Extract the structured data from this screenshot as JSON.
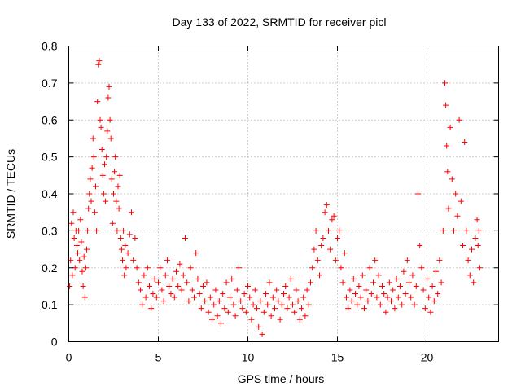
{
  "chart_data": {
    "type": "scatter",
    "title": "Day 133 of 2022, SRMTID for receiver picl",
    "xlabel": "GPS time / hours",
    "ylabel": "SRMTID / TECUs",
    "xlim": [
      0,
      24
    ],
    "ylim": [
      0,
      0.8
    ],
    "xticks": [
      0,
      5,
      10,
      15,
      20
    ],
    "xtick_labels": [
      "0",
      "5",
      "10",
      "15",
      "20"
    ],
    "yticks": [
      0,
      0.1,
      0.2,
      0.3,
      0.4,
      0.5,
      0.6,
      0.7,
      0.8
    ],
    "ytick_labels": [
      "0",
      "0.1",
      "0.2",
      "0.3",
      "0.4",
      "0.5",
      "0.6",
      "0.7",
      "0.8"
    ],
    "grid": true,
    "marker": "plus",
    "color": "#ff0000",
    "series": [
      {
        "name": "SRMTID",
        "points": [
          [
            0.05,
            0.15
          ],
          [
            0.1,
            0.22
          ],
          [
            0.15,
            0.32
          ],
          [
            0.2,
            0.18
          ],
          [
            0.25,
            0.35
          ],
          [
            0.3,
            0.28
          ],
          [
            0.35,
            0.2
          ],
          [
            0.4,
            0.3
          ],
          [
            0.45,
            0.26
          ],
          [
            0.5,
            0.24
          ],
          [
            0.55,
            0.3
          ],
          [
            0.6,
            0.22
          ],
          [
            0.65,
            0.33
          ],
          [
            0.7,
            0.27
          ],
          [
            0.75,
            0.19
          ],
          [
            0.8,
            0.15
          ],
          [
            0.85,
            0.23
          ],
          [
            0.9,
            0.12
          ],
          [
            0.95,
            0.2
          ],
          [
            1.0,
            0.25
          ],
          [
            1.05,
            0.3
          ],
          [
            1.1,
            0.36
          ],
          [
            1.15,
            0.4
          ],
          [
            1.2,
            0.44
          ],
          [
            1.25,
            0.38
          ],
          [
            1.3,
            0.47
          ],
          [
            1.35,
            0.55
          ],
          [
            1.4,
            0.5
          ],
          [
            1.45,
            0.35
          ],
          [
            1.5,
            0.42
          ],
          [
            1.55,
            0.3
          ],
          [
            1.6,
            0.65
          ],
          [
            1.65,
            0.75
          ],
          [
            1.7,
            0.76
          ],
          [
            1.75,
            0.6
          ],
          [
            1.8,
            0.58
          ],
          [
            1.85,
            0.52
          ],
          [
            1.9,
            0.45
          ],
          [
            1.95,
            0.4
          ],
          [
            2.0,
            0.48
          ],
          [
            2.05,
            0.38
          ],
          [
            2.1,
            0.5
          ],
          [
            2.15,
            0.57
          ],
          [
            2.2,
            0.66
          ],
          [
            2.25,
            0.69
          ],
          [
            2.3,
            0.6
          ],
          [
            2.35,
            0.55
          ],
          [
            2.4,
            0.44
          ],
          [
            2.45,
            0.32
          ],
          [
            2.5,
            0.4
          ],
          [
            2.55,
            0.46
          ],
          [
            2.6,
            0.5
          ],
          [
            2.65,
            0.38
          ],
          [
            2.7,
            0.3
          ],
          [
            2.75,
            0.42
          ],
          [
            2.8,
            0.36
          ],
          [
            2.85,
            0.45
          ],
          [
            2.9,
            0.28
          ],
          [
            2.95,
            0.25
          ],
          [
            3.0,
            0.22
          ],
          [
            3.05,
            0.3
          ],
          [
            3.1,
            0.18
          ],
          [
            3.15,
            0.26
          ],
          [
            3.2,
            0.2
          ],
          [
            3.3,
            0.24
          ],
          [
            3.4,
            0.29
          ],
          [
            3.5,
            0.35
          ],
          [
            3.6,
            0.22
          ],
          [
            3.7,
            0.28
          ],
          [
            3.8,
            0.2
          ],
          [
            3.9,
            0.16
          ],
          [
            4.0,
            0.14
          ],
          [
            4.1,
            0.1
          ],
          [
            4.2,
            0.18
          ],
          [
            4.3,
            0.12
          ],
          [
            4.4,
            0.2
          ],
          [
            4.5,
            0.15
          ],
          [
            4.6,
            0.09
          ],
          [
            4.7,
            0.13
          ],
          [
            4.8,
            0.17
          ],
          [
            4.9,
            0.12
          ],
          [
            5.0,
            0.16
          ],
          [
            5.1,
            0.2
          ],
          [
            5.2,
            0.14
          ],
          [
            5.3,
            0.11
          ],
          [
            5.4,
            0.18
          ],
          [
            5.5,
            0.22
          ],
          [
            5.6,
            0.15
          ],
          [
            5.7,
            0.13
          ],
          [
            5.8,
            0.17
          ],
          [
            5.9,
            0.12
          ],
          [
            6.0,
            0.19
          ],
          [
            6.1,
            0.15
          ],
          [
            6.2,
            0.21
          ],
          [
            6.3,
            0.14
          ],
          [
            6.4,
            0.18
          ],
          [
            6.5,
            0.28
          ],
          [
            6.6,
            0.16
          ],
          [
            6.7,
            0.11
          ],
          [
            6.8,
            0.2
          ],
          [
            6.9,
            0.14
          ],
          [
            7.0,
            0.12
          ],
          [
            7.1,
            0.24
          ],
          [
            7.2,
            0.17
          ],
          [
            7.3,
            0.13
          ],
          [
            7.4,
            0.09
          ],
          [
            7.5,
            0.15
          ],
          [
            7.6,
            0.11
          ],
          [
            7.7,
            0.16
          ],
          [
            7.8,
            0.08
          ],
          [
            7.9,
            0.12
          ],
          [
            8.0,
            0.06
          ],
          [
            8.1,
            0.1
          ],
          [
            8.2,
            0.14
          ],
          [
            8.3,
            0.07
          ],
          [
            8.4,
            0.11
          ],
          [
            8.5,
            0.05
          ],
          [
            8.6,
            0.13
          ],
          [
            8.7,
            0.09
          ],
          [
            8.8,
            0.16
          ],
          [
            8.9,
            0.08
          ],
          [
            9.0,
            0.12
          ],
          [
            9.1,
            0.17
          ],
          [
            9.2,
            0.1
          ],
          [
            9.3,
            0.07
          ],
          [
            9.4,
            0.14
          ],
          [
            9.5,
            0.2
          ],
          [
            9.6,
            0.11
          ],
          [
            9.7,
            0.09
          ],
          [
            9.8,
            0.13
          ],
          [
            9.9,
            0.08
          ],
          [
            10.0,
            0.15
          ],
          [
            10.1,
            0.12
          ],
          [
            10.2,
            0.06
          ],
          [
            10.3,
            0.1
          ],
          [
            10.4,
            0.14
          ],
          [
            10.5,
            0.09
          ],
          [
            10.6,
            0.04
          ],
          [
            10.7,
            0.11
          ],
          [
            10.8,
            0.02
          ],
          [
            10.9,
            0.08
          ],
          [
            11.0,
            0.13
          ],
          [
            11.1,
            0.1
          ],
          [
            11.2,
            0.16
          ],
          [
            11.3,
            0.07
          ],
          [
            11.4,
            0.12
          ],
          [
            11.5,
            0.09
          ],
          [
            11.6,
            0.14
          ],
          [
            11.7,
            0.11
          ],
          [
            11.8,
            0.06
          ],
          [
            11.9,
            0.1
          ],
          [
            12.0,
            0.13
          ],
          [
            12.1,
            0.15
          ],
          [
            12.2,
            0.09
          ],
          [
            12.3,
            0.12
          ],
          [
            12.4,
            0.17
          ],
          [
            12.5,
            0.1
          ],
          [
            12.6,
            0.08
          ],
          [
            12.7,
            0.14
          ],
          [
            12.8,
            0.11
          ],
          [
            12.9,
            0.06
          ],
          [
            13.0,
            0.09
          ],
          [
            13.1,
            0.12
          ],
          [
            13.2,
            0.07
          ],
          [
            13.3,
            0.14
          ],
          [
            13.4,
            0.1
          ],
          [
            13.5,
            0.16
          ],
          [
            13.6,
            0.2
          ],
          [
            13.7,
            0.25
          ],
          [
            13.8,
            0.3
          ],
          [
            13.9,
            0.22
          ],
          [
            14.0,
            0.18
          ],
          [
            14.1,
            0.26
          ],
          [
            14.2,
            0.28
          ],
          [
            14.3,
            0.35
          ],
          [
            14.4,
            0.37
          ],
          [
            14.5,
            0.3
          ],
          [
            14.6,
            0.25
          ],
          [
            14.7,
            0.33
          ],
          [
            14.8,
            0.34
          ],
          [
            14.9,
            0.22
          ],
          [
            15.0,
            0.28
          ],
          [
            15.1,
            0.3
          ],
          [
            15.2,
            0.2
          ],
          [
            15.3,
            0.16
          ],
          [
            15.4,
            0.24
          ],
          [
            15.5,
            0.12
          ],
          [
            15.6,
            0.09
          ],
          [
            15.7,
            0.14
          ],
          [
            15.8,
            0.11
          ],
          [
            15.9,
            0.17
          ],
          [
            16.0,
            0.13
          ],
          [
            16.1,
            0.1
          ],
          [
            16.2,
            0.15
          ],
          [
            16.3,
            0.12
          ],
          [
            16.4,
            0.18
          ],
          [
            16.5,
            0.09
          ],
          [
            16.6,
            0.14
          ],
          [
            16.7,
            0.11
          ],
          [
            16.8,
            0.2
          ],
          [
            16.9,
            0.13
          ],
          [
            17.0,
            0.16
          ],
          [
            17.1,
            0.22
          ],
          [
            17.2,
            0.12
          ],
          [
            17.3,
            0.18
          ],
          [
            17.4,
            0.1
          ],
          [
            17.5,
            0.15
          ],
          [
            17.6,
            0.13
          ],
          [
            17.7,
            0.08
          ],
          [
            17.8,
            0.12
          ],
          [
            17.9,
            0.16
          ],
          [
            18.0,
            0.11
          ],
          [
            18.1,
            0.14
          ],
          [
            18.2,
            0.09
          ],
          [
            18.3,
            0.17
          ],
          [
            18.4,
            0.12
          ],
          [
            18.5,
            0.15
          ],
          [
            18.6,
            0.1
          ],
          [
            18.7,
            0.19
          ],
          [
            18.8,
            0.13
          ],
          [
            18.9,
            0.22
          ],
          [
            19.0,
            0.16
          ],
          [
            19.1,
            0.12
          ],
          [
            19.2,
            0.18
          ],
          [
            19.3,
            0.1
          ],
          [
            19.4,
            0.15
          ],
          [
            19.5,
            0.4
          ],
          [
            19.6,
            0.26
          ],
          [
            19.7,
            0.2
          ],
          [
            19.8,
            0.14
          ],
          [
            19.9,
            0.09
          ],
          [
            20.0,
            0.17
          ],
          [
            20.1,
            0.12
          ],
          [
            20.2,
            0.08
          ],
          [
            20.3,
            0.15
          ],
          [
            20.4,
            0.11
          ],
          [
            20.5,
            0.19
          ],
          [
            20.6,
            0.13
          ],
          [
            20.7,
            0.22
          ],
          [
            20.8,
            0.16
          ],
          [
            20.9,
            0.3
          ],
          [
            21.0,
            0.7
          ],
          [
            21.05,
            0.64
          ],
          [
            21.1,
            0.53
          ],
          [
            21.15,
            0.46
          ],
          [
            21.2,
            0.36
          ],
          [
            21.3,
            0.58
          ],
          [
            21.4,
            0.44
          ],
          [
            21.5,
            0.3
          ],
          [
            21.6,
            0.4
          ],
          [
            21.7,
            0.34
          ],
          [
            21.8,
            0.6
          ],
          [
            21.9,
            0.38
          ],
          [
            22.0,
            0.26
          ],
          [
            22.1,
            0.54
          ],
          [
            22.2,
            0.3
          ],
          [
            22.3,
            0.22
          ],
          [
            22.4,
            0.18
          ],
          [
            22.5,
            0.25
          ],
          [
            22.6,
            0.16
          ],
          [
            22.7,
            0.28
          ],
          [
            22.8,
            0.33
          ],
          [
            22.85,
            0.26
          ],
          [
            22.9,
            0.3
          ],
          [
            22.95,
            0.2
          ]
        ]
      }
    ]
  }
}
